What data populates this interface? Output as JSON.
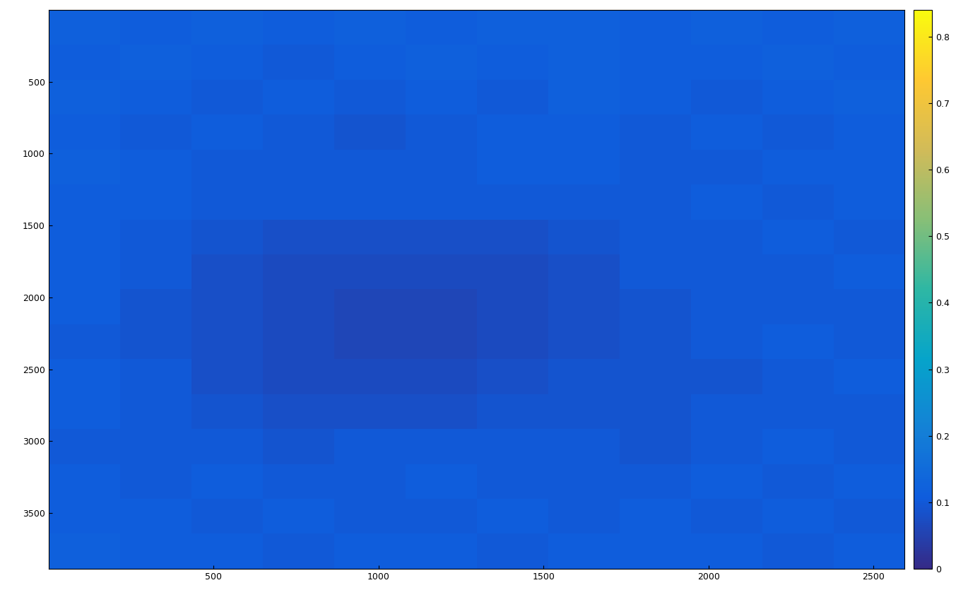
{
  "chart_data": {
    "type": "heatmap",
    "xlim": [
      0.5,
      2592.5
    ],
    "ylim": [
      3888.5,
      0.5
    ],
    "xticks": [
      500,
      1000,
      1500,
      2000,
      2500
    ],
    "yticks": [
      500,
      1000,
      1500,
      2000,
      2500,
      3000,
      3500
    ],
    "cells": [
      [
        0.12,
        0.11,
        0.12,
        0.11,
        0.12,
        0.11,
        0.12,
        0.12,
        0.11,
        0.12,
        0.11,
        0.12
      ],
      [
        0.11,
        0.12,
        0.11,
        0.1,
        0.11,
        0.12,
        0.11,
        0.12,
        0.11,
        0.11,
        0.12,
        0.11
      ],
      [
        0.12,
        0.11,
        0.1,
        0.11,
        0.1,
        0.11,
        0.1,
        0.12,
        0.11,
        0.1,
        0.11,
        0.12
      ],
      [
        0.11,
        0.1,
        0.11,
        0.1,
        0.09,
        0.1,
        0.11,
        0.11,
        0.1,
        0.11,
        0.1,
        0.11
      ],
      [
        0.12,
        0.11,
        0.1,
        0.1,
        0.1,
        0.1,
        0.11,
        0.11,
        0.1,
        0.1,
        0.11,
        0.11
      ],
      [
        0.11,
        0.11,
        0.1,
        0.1,
        0.1,
        0.1,
        0.1,
        0.1,
        0.1,
        0.11,
        0.1,
        0.11
      ],
      [
        0.11,
        0.1,
        0.09,
        0.08,
        0.08,
        0.08,
        0.08,
        0.09,
        0.1,
        0.1,
        0.11,
        0.1
      ],
      [
        0.11,
        0.1,
        0.08,
        0.07,
        0.07,
        0.07,
        0.07,
        0.08,
        0.1,
        0.1,
        0.1,
        0.11
      ],
      [
        0.11,
        0.09,
        0.08,
        0.07,
        0.06,
        0.06,
        0.07,
        0.08,
        0.09,
        0.1,
        0.1,
        0.1
      ],
      [
        0.1,
        0.09,
        0.08,
        0.07,
        0.06,
        0.06,
        0.07,
        0.08,
        0.09,
        0.1,
        0.11,
        0.1
      ],
      [
        0.11,
        0.1,
        0.08,
        0.07,
        0.07,
        0.07,
        0.08,
        0.09,
        0.09,
        0.09,
        0.1,
        0.11
      ],
      [
        0.11,
        0.1,
        0.09,
        0.08,
        0.08,
        0.08,
        0.09,
        0.09,
        0.09,
        0.1,
        0.1,
        0.1
      ],
      [
        0.1,
        0.1,
        0.1,
        0.09,
        0.1,
        0.1,
        0.1,
        0.1,
        0.09,
        0.1,
        0.11,
        0.1
      ],
      [
        0.11,
        0.1,
        0.11,
        0.1,
        0.1,
        0.11,
        0.1,
        0.1,
        0.1,
        0.11,
        0.1,
        0.11
      ],
      [
        0.11,
        0.11,
        0.1,
        0.11,
        0.1,
        0.1,
        0.11,
        0.1,
        0.11,
        0.1,
        0.11,
        0.1
      ],
      [
        0.12,
        0.11,
        0.11,
        0.1,
        0.11,
        0.11,
        0.1,
        0.11,
        0.11,
        0.11,
        0.1,
        0.11
      ]
    ],
    "colorbar_range": [
      0,
      0.84
    ],
    "colorbar_ticks": [
      0,
      0.1,
      0.2,
      0.3,
      0.4,
      0.5,
      0.6,
      0.7,
      0.8
    ]
  }
}
